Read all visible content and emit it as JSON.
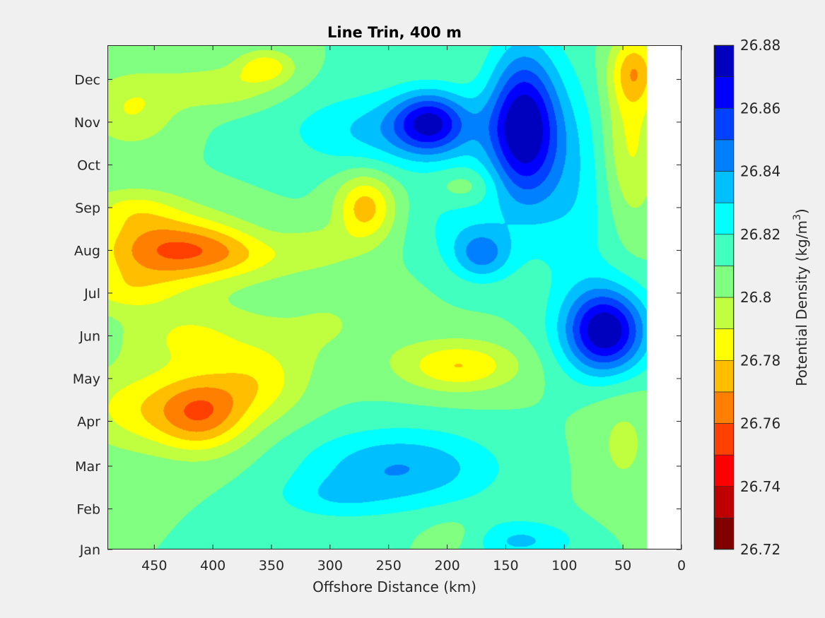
{
  "chart_data": {
    "type": "heatmap",
    "subtype": "filled-contour",
    "title": "Line Trin, 400 m",
    "xlabel": "Offshore Distance (km)",
    "xlim": [
      490,
      0
    ],
    "x_direction": "reversed",
    "x_ticks": [
      450,
      400,
      350,
      300,
      250,
      200,
      150,
      100,
      50,
      0
    ],
    "x_tick_labels": [
      "450",
      "400",
      "350",
      "300",
      "250",
      "200",
      "150",
      "100",
      "50",
      "0"
    ],
    "ylabel": "",
    "ylim": [
      0,
      11.8
    ],
    "y_ticks": [
      0,
      0.95,
      1.95,
      3,
      4,
      5,
      6,
      7,
      8,
      9,
      10,
      11
    ],
    "y_tick_labels": [
      "Jan",
      "Feb",
      "Mar",
      "Apr",
      "May",
      "Jun",
      "Jul",
      "Aug",
      "Sep",
      "Oct",
      "Nov",
      "Dec"
    ],
    "data_x_range": [
      490,
      30
    ],
    "colorbar": {
      "label": "Potential Density (kg/m",
      "label_superscript": "3",
      "label_suffix": ")",
      "min": 26.72,
      "max": 26.88,
      "ticks": [
        26.72,
        26.74,
        26.76,
        26.78,
        26.8,
        26.82,
        26.84,
        26.86,
        26.88
      ],
      "tick_labels": [
        "26.72",
        "26.74",
        "26.76",
        "26.78",
        "26.8",
        "26.82",
        "26.84",
        "26.86",
        "26.88"
      ],
      "levels": [
        26.72,
        26.73,
        26.74,
        26.75,
        26.76,
        26.77,
        26.78,
        26.79,
        26.8,
        26.81,
        26.82,
        26.83,
        26.84,
        26.85,
        26.86,
        26.87,
        26.88
      ],
      "colormap": "jet",
      "colors": [
        "#800000",
        "#bf0000",
        "#ff0000",
        "#ff4000",
        "#ff8000",
        "#ffbf00",
        "#ffff00",
        "#bfff40",
        "#80ff80",
        "#40ffbf",
        "#00ffff",
        "#00bfff",
        "#0080ff",
        "#0040ff",
        "#0000ff",
        "#0000bf"
      ]
    },
    "background_value": 26.81,
    "features": [
      {
        "x": 445,
        "y": 7.0,
        "sx": 60,
        "sy": 0.9,
        "amp": -0.045
      },
      {
        "x": 395,
        "y": 7.0,
        "sx": 45,
        "sy": 0.6,
        "amp": -0.018
      },
      {
        "x": 360,
        "y": 6.8,
        "sx": 45,
        "sy": 0.5,
        "amp": -0.008
      },
      {
        "x": 480,
        "y": 6.0,
        "sx": 40,
        "sy": 0.5,
        "amp": -0.015
      },
      {
        "x": 470,
        "y": 8.0,
        "sx": 40,
        "sy": 0.5,
        "amp": -0.015
      },
      {
        "x": 310,
        "y": 7.1,
        "sx": 35,
        "sy": 0.5,
        "amp": -0.012
      },
      {
        "x": 410,
        "y": 3.2,
        "sx": 40,
        "sy": 0.9,
        "amp": -0.045
      },
      {
        "x": 360,
        "y": 3.9,
        "sx": 40,
        "sy": 0.9,
        "amp": -0.022
      },
      {
        "x": 470,
        "y": 3.3,
        "sx": 50,
        "sy": 1.0,
        "amp": -0.022
      },
      {
        "x": 270,
        "y": 8.0,
        "sx": 25,
        "sy": 0.8,
        "amp": -0.035
      },
      {
        "x": 190,
        "y": 4.3,
        "sx": 50,
        "sy": 0.6,
        "amp": -0.03
      },
      {
        "x": 470,
        "y": 10.3,
        "sx": 40,
        "sy": 0.9,
        "amp": -0.02
      },
      {
        "x": 395,
        "y": 10.8,
        "sx": 50,
        "sy": 0.5,
        "amp": -0.018
      },
      {
        "x": 355,
        "y": 11.3,
        "sx": 25,
        "sy": 0.4,
        "amp": -0.025
      },
      {
        "x": 300,
        "y": 5.3,
        "sx": 60,
        "sy": 1.2,
        "amp": -0.01
      },
      {
        "x": 420,
        "y": 5.0,
        "sx": 60,
        "sy": 0.8,
        "amp": -0.02
      },
      {
        "x": 65,
        "y": 5.1,
        "sx": 35,
        "sy": 1.0,
        "amp": 0.07
      },
      {
        "x": 135,
        "y": 9.9,
        "sx": 30,
        "sy": 1.8,
        "amp": 0.065
      },
      {
        "x": 215,
        "y": 10.0,
        "sx": 30,
        "sy": 0.7,
        "amp": 0.045
      },
      {
        "x": 240,
        "y": 9.8,
        "sx": 90,
        "sy": 0.9,
        "amp": 0.025
      },
      {
        "x": 170,
        "y": 6.9,
        "sx": 25,
        "sy": 0.6,
        "amp": 0.03
      },
      {
        "x": 240,
        "y": 1.9,
        "sx": 80,
        "sy": 0.9,
        "amp": 0.03
      },
      {
        "x": 140,
        "y": 0.2,
        "sx": 50,
        "sy": 0.5,
        "amp": 0.022
      },
      {
        "x": 300,
        "y": 1.2,
        "sx": 50,
        "sy": 0.5,
        "amp": 0.012
      },
      {
        "x": 90,
        "y": 8.5,
        "sx": 40,
        "sy": 2.5,
        "amp": 0.018
      },
      {
        "x": 190,
        "y": 7.6,
        "sx": 40,
        "sy": 1.0,
        "amp": 0.012
      },
      {
        "x": 185,
        "y": 8.5,
        "sx": 25,
        "sy": 0.4,
        "amp": -0.012
      },
      {
        "x": 190,
        "y": 0.3,
        "sx": 30,
        "sy": 0.5,
        "amp": -0.01
      },
      {
        "x": 45,
        "y": 9.5,
        "sx": 25,
        "sy": 2.0,
        "amp": -0.025
      },
      {
        "x": 40,
        "y": 11.2,
        "sx": 20,
        "sy": 0.8,
        "amp": -0.03
      },
      {
        "x": 50,
        "y": 2.5,
        "sx": 30,
        "sy": 1.5,
        "amp": -0.012
      }
    ]
  }
}
